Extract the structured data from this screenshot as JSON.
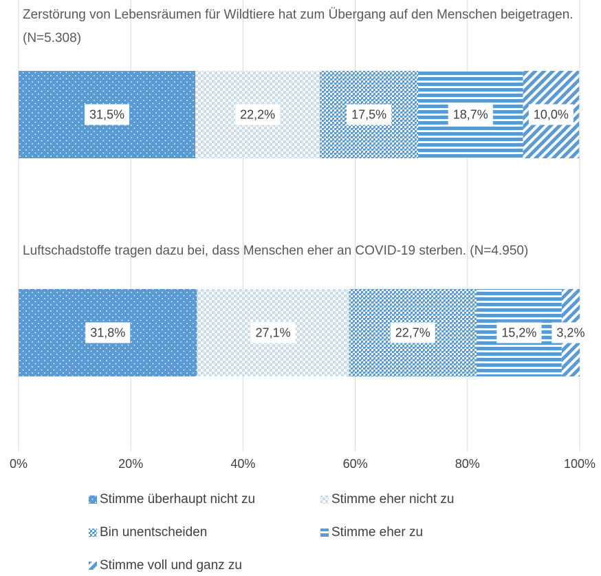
{
  "chart_data": {
    "type": "bar",
    "orientation": "horizontal",
    "stacked": true,
    "categories": [
      "Zerstörung von Lebensräumen für Wildtiere hat zum Übergang auf den Menschen beigetragen. (N=5.308)",
      "Luftschadstoffe tragen dazu bei, dass Menschen eher an COVID-19 sterben. (N=4.950)"
    ],
    "series": [
      {
        "name": "Stimme überhaupt nicht zu",
        "color": "#5b9bd5",
        "pattern": "dots",
        "values": [
          31.5,
          31.8
        ],
        "value_labels": [
          "31,5%",
          "31,8%"
        ]
      },
      {
        "name": "Stimme eher nicht zu",
        "color": "#5b9bd5",
        "pattern": "light-check",
        "values": [
          22.2,
          27.1
        ],
        "value_labels": [
          "22,2%",
          "27,1%"
        ]
      },
      {
        "name": "Bin unentscheiden",
        "color": "#5b9bd5",
        "pattern": "check",
        "values": [
          17.5,
          22.7
        ],
        "value_labels": [
          "17,5%",
          "22,7%"
        ]
      },
      {
        "name": "Stimme eher zu",
        "color": "#5b9bd5",
        "pattern": "horizontal",
        "values": [
          18.7,
          15.2
        ],
        "value_labels": [
          "18,7%",
          "15,2%"
        ]
      },
      {
        "name": "Stimme voll und ganz zu",
        "color": "#5b9bd5",
        "pattern": "diagonal",
        "values": [
          10.0,
          3.2
        ],
        "value_labels": [
          "10,0%",
          "3,2%"
        ]
      }
    ],
    "xlim": [
      0,
      100
    ],
    "xticks": [
      {
        "value": 0,
        "label": "0%"
      },
      {
        "value": 20,
        "label": "20%"
      },
      {
        "value": 40,
        "label": "40%"
      },
      {
        "value": 60,
        "label": "60%"
      },
      {
        "value": 80,
        "label": "80%"
      },
      {
        "value": 100,
        "label": "100%"
      }
    ],
    "grid": true,
    "legend": "bottom"
  }
}
